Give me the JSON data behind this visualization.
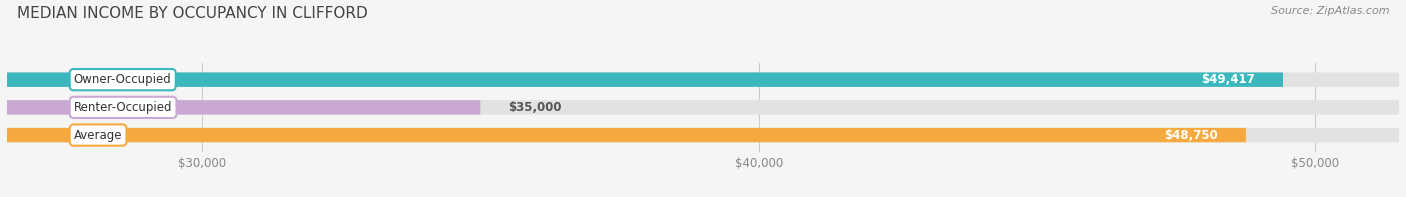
{
  "title": "MEDIAN INCOME BY OCCUPANCY IN CLIFFORD",
  "source": "Source: ZipAtlas.com",
  "categories": [
    "Owner-Occupied",
    "Renter-Occupied",
    "Average"
  ],
  "values": [
    49417,
    35000,
    48750
  ],
  "bar_colors": [
    "#3ab8bd",
    "#c9a8d4",
    "#f5a93e"
  ],
  "background_color": "#f5f5f5",
  "bar_bg_color": "#e2e2e2",
  "xlim_min": 26500,
  "xlim_max": 51500,
  "xticks": [
    30000,
    40000,
    50000
  ],
  "xtick_labels": [
    "$30,000",
    "$40,000",
    "$50,000"
  ],
  "value_labels": [
    "$49,417",
    "$35,000",
    "$48,750"
  ],
  "label_inside": [
    true,
    false,
    true
  ],
  "bar_height": 0.52,
  "title_fontsize": 11,
  "label_fontsize": 8.5,
  "tick_fontsize": 8.5,
  "source_fontsize": 8,
  "grid_color": "#cccccc"
}
